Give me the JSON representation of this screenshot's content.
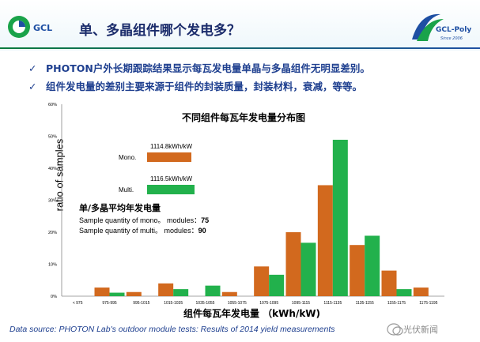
{
  "header": {
    "title": "单、多晶组件哪个发电多？",
    "logo_left_text": "GCL",
    "logo_right_text": "GCL-Poly",
    "logo_right_sub": "Since 2006"
  },
  "bullets": [
    "PHOTON户外长期跟踪结果显示每瓦发电量单晶与多晶组件无明显差别。",
    "组件发电量的差别主要来源于组件的封装质量，封装材料，衰减，等等。"
  ],
  "bullet_mark": "✓",
  "colors": {
    "mono": "#d2691e",
    "multi": "#22b14c",
    "title_blue": "#1b2c6b",
    "text_blue": "#1e3f8f"
  },
  "legend": {
    "mono_value": "1114.8kWh/kW",
    "mono_label": "Mono.",
    "multi_value": "1116.5kWh/kW",
    "multi_label": "Multi."
  },
  "averages": {
    "heading": "单/多晶平均年发电量",
    "mono_text": "Sample quantity of mono。 modules：",
    "mono_count": "75",
    "multi_text": "Sample quantity of multi。 modules：",
    "multi_count": "90"
  },
  "source": "Data source: PHOTON Lab's outdoor module tests: Results of 2014 yield measurements",
  "watermark": "光伏新闻",
  "chart_data": {
    "type": "bar",
    "title": "不同组件每瓦年发电量分布图",
    "xlabel": "组件每瓦年发电量 （kWh/kW)",
    "ylabel": "ratio of samples",
    "ylim": [
      0,
      60
    ],
    "yticks": [
      "0%",
      "10%",
      "20%",
      "30%",
      "40%",
      "50%",
      "60%"
    ],
    "categories": [
      "< 975",
      "975-995",
      "995-1015",
      "1015-1035",
      "1035-1055",
      "1055-1075",
      "1075-1095",
      "1095-1115",
      "1115-1135",
      "1135-1155",
      "1155-1175",
      "1175-1195"
    ],
    "series": [
      {
        "name": "Mono.",
        "values": [
          0,
          2.7,
          1.3,
          4.0,
          0,
          1.3,
          9.3,
          20.0,
          34.7,
          16.0,
          8.0,
          2.7
        ]
      },
      {
        "name": "Multi.",
        "values": [
          0,
          1.1,
          0,
          2.2,
          3.3,
          0,
          6.7,
          16.7,
          48.9,
          18.9,
          2.2,
          0
        ]
      }
    ]
  }
}
